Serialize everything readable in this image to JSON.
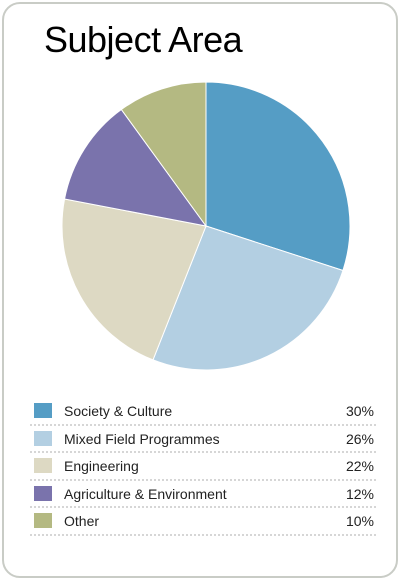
{
  "chart_data": {
    "type": "pie",
    "title": "Subject Area",
    "categories": [
      "Society & Culture",
      "Mixed Field Programmes",
      "Engineering",
      "Agriculture & Environment",
      "Other"
    ],
    "values": [
      30,
      26,
      22,
      12,
      10
    ],
    "value_labels": [
      "30%",
      "26%",
      "22%",
      "12%",
      "10%"
    ],
    "colors": [
      "#559dc5",
      "#b3cfe2",
      "#ddd9c3",
      "#7a73ac",
      "#b4b982"
    ],
    "legend_position": "bottom",
    "start": "top, clockwise"
  }
}
